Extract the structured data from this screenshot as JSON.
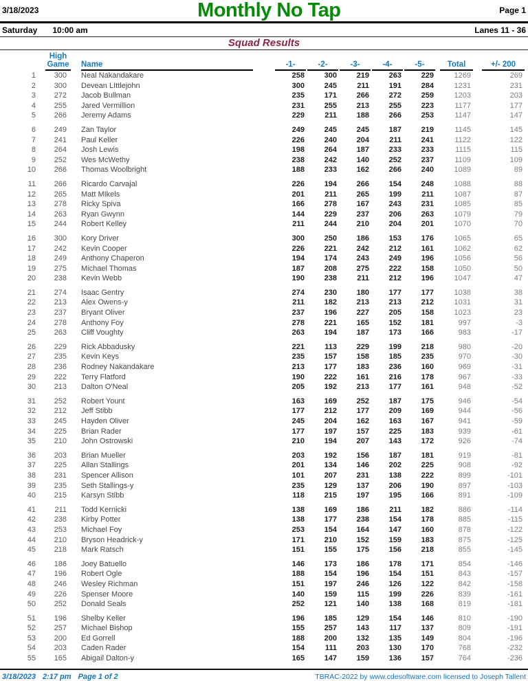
{
  "page": {
    "date": "3/18/2023",
    "title": "Monthly No Tap",
    "page_label": "Page 1",
    "day": "Saturday",
    "time": "10:00 am",
    "lanes": "Lanes 11 - 36",
    "subtitle": "Squad Results"
  },
  "colors": {
    "title_green": "#088A08",
    "subtitle_maroon": "#8B2342",
    "column_header_blue": "#1478BE",
    "footer_blue": "#1472B8"
  },
  "table": {
    "headers": {
      "high_game_line1": "High",
      "high_game_line2": "Game",
      "name": "Name",
      "games": [
        "-1-",
        "-2-",
        "-3-",
        "-4-",
        "-5-"
      ],
      "total": "Total",
      "plus_minus": "+/- 200"
    },
    "rows": [
      {
        "rank": 1,
        "high_game": 300,
        "name": "Neal Nakandakare",
        "games": [
          258,
          300,
          219,
          263,
          229
        ],
        "total": 1269,
        "plus_minus": 269
      },
      {
        "rank": 2,
        "high_game": 300,
        "name": "Devean LIttlejohn",
        "games": [
          300,
          245,
          211,
          191,
          284
        ],
        "total": 1231,
        "plus_minus": 231
      },
      {
        "rank": 3,
        "high_game": 272,
        "name": "Jacob Bullman",
        "games": [
          235,
          171,
          266,
          272,
          259
        ],
        "total": 1203,
        "plus_minus": 203
      },
      {
        "rank": 4,
        "high_game": 255,
        "name": "Jared Vermillion",
        "games": [
          231,
          255,
          213,
          255,
          223
        ],
        "total": 1177,
        "plus_minus": 177
      },
      {
        "rank": 5,
        "high_game": 266,
        "name": "Jeremy Adams",
        "games": [
          229,
          211,
          188,
          266,
          253
        ],
        "total": 1147,
        "plus_minus": 147
      },
      {
        "rank": 6,
        "high_game": 249,
        "name": "Zan Taylor",
        "games": [
          249,
          245,
          245,
          187,
          219
        ],
        "total": 1145,
        "plus_minus": 145
      },
      {
        "rank": 7,
        "high_game": 241,
        "name": "Paul Keller",
        "games": [
          226,
          240,
          204,
          211,
          241
        ],
        "total": 1122,
        "plus_minus": 122
      },
      {
        "rank": 8,
        "high_game": 264,
        "name": "Josh Lewis",
        "games": [
          198,
          264,
          187,
          233,
          233
        ],
        "total": 1115,
        "plus_minus": 115
      },
      {
        "rank": 9,
        "high_game": 252,
        "name": "Wes McWethy",
        "games": [
          238,
          242,
          140,
          252,
          237
        ],
        "total": 1109,
        "plus_minus": 109
      },
      {
        "rank": 10,
        "high_game": 266,
        "name": "Thomas Woolbright",
        "games": [
          188,
          233,
          162,
          266,
          240
        ],
        "total": 1089,
        "plus_minus": 89
      },
      {
        "rank": 11,
        "high_game": 266,
        "name": "Ricardo Carvajal",
        "games": [
          226,
          194,
          266,
          154,
          248
        ],
        "total": 1088,
        "plus_minus": 88
      },
      {
        "rank": 12,
        "high_game": 265,
        "name": "Matt MIkels",
        "games": [
          201,
          211,
          265,
          199,
          211
        ],
        "total": 1087,
        "plus_minus": 87
      },
      {
        "rank": 13,
        "high_game": 278,
        "name": "Ricky Spiva",
        "games": [
          166,
          278,
          167,
          243,
          231
        ],
        "total": 1085,
        "plus_minus": 85
      },
      {
        "rank": 14,
        "high_game": 263,
        "name": "Ryan Gwynn",
        "games": [
          144,
          229,
          237,
          206,
          263
        ],
        "total": 1079,
        "plus_minus": 79
      },
      {
        "rank": 15,
        "high_game": 244,
        "name": "Robert Kelley",
        "games": [
          211,
          244,
          210,
          204,
          201
        ],
        "total": 1070,
        "plus_minus": 70
      },
      {
        "rank": 16,
        "high_game": 300,
        "name": "Kory Driver",
        "games": [
          300,
          250,
          186,
          153,
          176
        ],
        "total": 1065,
        "plus_minus": 65
      },
      {
        "rank": 17,
        "high_game": 242,
        "name": "Kevin Cooper",
        "games": [
          226,
          221,
          242,
          212,
          161
        ],
        "total": 1062,
        "plus_minus": 62
      },
      {
        "rank": 18,
        "high_game": 249,
        "name": "Anthony Chaperon",
        "games": [
          194,
          174,
          243,
          249,
          196
        ],
        "total": 1056,
        "plus_minus": 56
      },
      {
        "rank": 19,
        "high_game": 275,
        "name": "Michael Thomas",
        "games": [
          187,
          208,
          275,
          222,
          158
        ],
        "total": 1050,
        "plus_minus": 50
      },
      {
        "rank": 20,
        "high_game": 238,
        "name": "Kevin Webb",
        "games": [
          190,
          238,
          211,
          212,
          196
        ],
        "total": 1047,
        "plus_minus": 47
      },
      {
        "rank": 21,
        "high_game": 274,
        "name": "Isaac Gentry",
        "games": [
          274,
          230,
          180,
          177,
          177
        ],
        "total": 1038,
        "plus_minus": 38
      },
      {
        "rank": 22,
        "high_game": 213,
        "name": "Alex Owens-y",
        "games": [
          211,
          182,
          213,
          213,
          212
        ],
        "total": 1031,
        "plus_minus": 31
      },
      {
        "rank": 23,
        "high_game": 237,
        "name": "Bryant Oliver",
        "games": [
          237,
          196,
          227,
          205,
          158
        ],
        "total": 1023,
        "plus_minus": 23
      },
      {
        "rank": 24,
        "high_game": 278,
        "name": "Anthony Foy",
        "games": [
          278,
          221,
          165,
          152,
          181
        ],
        "total": 997,
        "plus_minus": -3
      },
      {
        "rank": 25,
        "high_game": 263,
        "name": "Cliff Voughty",
        "games": [
          263,
          194,
          187,
          173,
          166
        ],
        "total": 983,
        "plus_minus": -17
      },
      {
        "rank": 26,
        "high_game": 229,
        "name": "Rick Abbadusky",
        "games": [
          221,
          113,
          229,
          199,
          218
        ],
        "total": 980,
        "plus_minus": -20
      },
      {
        "rank": 27,
        "high_game": 235,
        "name": "Kevin Keys",
        "games": [
          235,
          157,
          158,
          185,
          235
        ],
        "total": 970,
        "plus_minus": -30
      },
      {
        "rank": 28,
        "high_game": 236,
        "name": "Rodney Nakandakare",
        "games": [
          213,
          177,
          183,
          236,
          160
        ],
        "total": 969,
        "plus_minus": -31
      },
      {
        "rank": 29,
        "high_game": 222,
        "name": "Terry Flatford",
        "games": [
          190,
          222,
          161,
          216,
          178
        ],
        "total": 967,
        "plus_minus": -33
      },
      {
        "rank": 30,
        "high_game": 213,
        "name": "Dalton O'Neal",
        "games": [
          205,
          192,
          213,
          177,
          161
        ],
        "total": 948,
        "plus_minus": -52
      },
      {
        "rank": 31,
        "high_game": 252,
        "name": "Robert Yount",
        "games": [
          163,
          169,
          252,
          187,
          175
        ],
        "total": 946,
        "plus_minus": -54
      },
      {
        "rank": 32,
        "high_game": 212,
        "name": "Jeff Stibb",
        "games": [
          177,
          212,
          177,
          209,
          169
        ],
        "total": 944,
        "plus_minus": -56
      },
      {
        "rank": 33,
        "high_game": 245,
        "name": "Hayden Oliver",
        "games": [
          245,
          204,
          162,
          163,
          167
        ],
        "total": 941,
        "plus_minus": -59
      },
      {
        "rank": 34,
        "high_game": 225,
        "name": "Brian Rader",
        "games": [
          177,
          197,
          157,
          225,
          183
        ],
        "total": 939,
        "plus_minus": -61
      },
      {
        "rank": 35,
        "high_game": 210,
        "name": "John Ostrowski",
        "games": [
          210,
          194,
          207,
          143,
          172
        ],
        "total": 926,
        "plus_minus": -74
      },
      {
        "rank": 36,
        "high_game": 203,
        "name": "Brian Mueller",
        "games": [
          203,
          192,
          156,
          187,
          181
        ],
        "total": 919,
        "plus_minus": -81
      },
      {
        "rank": 37,
        "high_game": 225,
        "name": "Allan Stallings",
        "games": [
          201,
          134,
          146,
          202,
          225
        ],
        "total": 908,
        "plus_minus": -92
      },
      {
        "rank": 38,
        "high_game": 231,
        "name": "Spencer Allison",
        "games": [
          101,
          207,
          231,
          138,
          222
        ],
        "total": 899,
        "plus_minus": -101
      },
      {
        "rank": 39,
        "high_game": 235,
        "name": "Seth Stallings-y",
        "games": [
          235,
          129,
          137,
          206,
          190
        ],
        "total": 897,
        "plus_minus": -103
      },
      {
        "rank": 40,
        "high_game": 215,
        "name": "Karsyn Stibb",
        "games": [
          118,
          215,
          197,
          195,
          166
        ],
        "total": 891,
        "plus_minus": -109
      },
      {
        "rank": 41,
        "high_game": 211,
        "name": "Todd Kernicki",
        "games": [
          138,
          169,
          186,
          211,
          182
        ],
        "total": 886,
        "plus_minus": -114
      },
      {
        "rank": 42,
        "high_game": 238,
        "name": "Kirby Potter",
        "games": [
          138,
          177,
          238,
          154,
          178
        ],
        "total": 885,
        "plus_minus": -115
      },
      {
        "rank": 43,
        "high_game": 253,
        "name": "Michael Foy",
        "games": [
          253,
          154,
          164,
          147,
          160
        ],
        "total": 878,
        "plus_minus": -122
      },
      {
        "rank": 44,
        "high_game": 210,
        "name": "Bryson Headrick-y",
        "games": [
          171,
          210,
          152,
          159,
          183
        ],
        "total": 875,
        "plus_minus": -125
      },
      {
        "rank": 45,
        "high_game": 218,
        "name": "Mark Ratsch",
        "games": [
          151,
          155,
          175,
          156,
          218
        ],
        "total": 855,
        "plus_minus": -145
      },
      {
        "rank": 46,
        "high_game": 186,
        "name": "Joey Batuello",
        "games": [
          146,
          173,
          186,
          178,
          171
        ],
        "total": 854,
        "plus_minus": -146
      },
      {
        "rank": 47,
        "high_game": 196,
        "name": "Robert Ogle",
        "games": [
          188,
          154,
          196,
          154,
          151
        ],
        "total": 843,
        "plus_minus": -157
      },
      {
        "rank": 48,
        "high_game": 246,
        "name": "Wesley Richman",
        "games": [
          151,
          197,
          246,
          126,
          122
        ],
        "total": 842,
        "plus_minus": -158
      },
      {
        "rank": 49,
        "high_game": 226,
        "name": "Spenser Moore",
        "games": [
          140,
          159,
          115,
          199,
          226
        ],
        "total": 839,
        "plus_minus": -161
      },
      {
        "rank": 50,
        "high_game": 252,
        "name": "Donald Seals",
        "games": [
          252,
          121,
          140,
          138,
          168
        ],
        "total": 819,
        "plus_minus": -181
      },
      {
        "rank": 51,
        "high_game": 196,
        "name": "Shelby Keller",
        "games": [
          196,
          185,
          129,
          154,
          146
        ],
        "total": 810,
        "plus_minus": -190
      },
      {
        "rank": 52,
        "high_game": 257,
        "name": "Michael Bishop",
        "games": [
          155,
          257,
          143,
          117,
          137
        ],
        "total": 809,
        "plus_minus": -191
      },
      {
        "rank": 53,
        "high_game": 200,
        "name": "Ed Gorrell",
        "games": [
          188,
          200,
          132,
          135,
          149
        ],
        "total": 804,
        "plus_minus": -196
      },
      {
        "rank": 54,
        "high_game": 203,
        "name": "Caden Rader",
        "games": [
          154,
          111,
          203,
          130,
          170
        ],
        "total": 768,
        "plus_minus": -232
      },
      {
        "rank": 55,
        "high_game": 165,
        "name": "Abigail Dalton-y",
        "games": [
          165,
          147,
          159,
          136,
          157
        ],
        "total": 764,
        "plus_minus": -236
      }
    ]
  },
  "footer": {
    "date": "3/18/2023",
    "time": "2:17 pm",
    "page": "Page 1 of 2",
    "license": "TBRAC-2022 by www.cdesoftware.com licensed to Joseph Tallent"
  }
}
